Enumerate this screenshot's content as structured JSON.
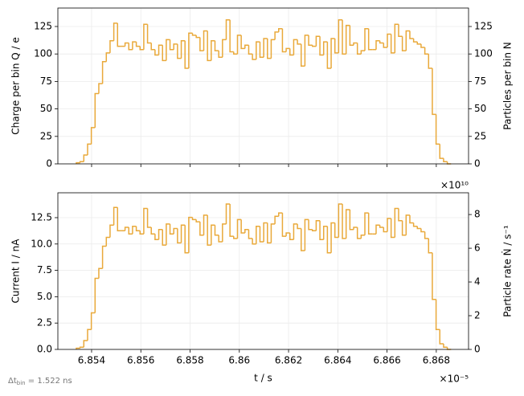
{
  "chart_data": [
    {
      "type": "histogram",
      "ylabel": "Charge per bin   Q / e",
      "y2label": "Particles per bin   N",
      "color": "#e9a93a",
      "grid": true,
      "show_xticklabels": false,
      "xlim": [
        6.85263,
        6.86931
      ],
      "xticks": [
        6.854,
        6.856,
        6.858,
        6.86,
        6.862,
        6.864,
        6.866,
        6.868
      ],
      "ylim": [
        0,
        141.8
      ],
      "yticks": [
        0,
        25,
        50,
        75,
        100,
        125
      ],
      "y2lim": [
        0,
        141.8
      ],
      "y2ticks": [
        0,
        25,
        50,
        75,
        100,
        125
      ],
      "bins": [
        6.85338,
        6.853532,
        6.853684,
        6.853837,
        6.853989,
        6.854141,
        6.854293,
        6.854445,
        6.854598,
        6.85475,
        6.854902,
        6.855054,
        6.855206,
        6.855359,
        6.855511,
        6.855663,
        6.855815,
        6.855967,
        6.85612,
        6.856272,
        6.856424,
        6.856576,
        6.856728,
        6.856881,
        6.857033,
        6.857185,
        6.857337,
        6.857489,
        6.857642,
        6.857794,
        6.857946,
        6.858098,
        6.85825,
        6.858403,
        6.858555,
        6.858707,
        6.858859,
        6.859011,
        6.859164,
        6.859316,
        6.859468,
        6.85962,
        6.859772,
        6.859925,
        6.860077,
        6.860229,
        6.860381,
        6.860533,
        6.860686,
        6.860838,
        6.86099,
        6.861142,
        6.861294,
        6.861447,
        6.861599,
        6.861751,
        6.861903,
        6.862055,
        6.862208,
        6.86236,
        6.862512,
        6.862664,
        6.862816,
        6.862969,
        6.863121,
        6.863273,
        6.863425,
        6.863577,
        6.86373,
        6.863882,
        6.864034,
        6.864186,
        6.864338,
        6.864491,
        6.864643,
        6.864795,
        6.864947,
        6.865099,
        6.865252,
        6.865404,
        6.865556,
        6.865708,
        6.86586,
        6.866013,
        6.866165,
        6.866317,
        6.866469,
        6.866621,
        6.866774,
        6.866926,
        6.867078,
        6.86723,
        6.867382,
        6.867535,
        6.867687,
        6.867839,
        6.867991,
        6.868143,
        6.868296,
        6.868448,
        6.8686
      ],
      "values": [
        1,
        2,
        8,
        18,
        33,
        64,
        73,
        93,
        101,
        112,
        128,
        107,
        107,
        110,
        104,
        111,
        107,
        104,
        127,
        110,
        104,
        99,
        108,
        94,
        113,
        104,
        109,
        96,
        112,
        87,
        119,
        117,
        115,
        103,
        121,
        94,
        112,
        103,
        97,
        113,
        131,
        102,
        100,
        117,
        105,
        108,
        100,
        95,
        111,
        97,
        114,
        96,
        113,
        120,
        123,
        102,
        105,
        99,
        113,
        109,
        89,
        117,
        108,
        107,
        116,
        99,
        111,
        87,
        114,
        101,
        131,
        100,
        126,
        108,
        110,
        100,
        103,
        123,
        104,
        104,
        112,
        110,
        106,
        118,
        101,
        127,
        116,
        103,
        121,
        114,
        111,
        109,
        106,
        100,
        87,
        45,
        18,
        5,
        2,
        0
      ]
    },
    {
      "type": "histogram",
      "ylabel": "Current   I / nA",
      "y2label": "Particle rate   Ṅ / s⁻¹",
      "xlabel": "t / s",
      "color": "#e9a93a",
      "grid": true,
      "x_offset_label": "×10⁻⁵",
      "y2_offset_label": "×10¹⁰",
      "xlim": [
        6.85263,
        6.86931
      ],
      "xticks": [
        6.854,
        6.856,
        6.858,
        6.86,
        6.862,
        6.864,
        6.866,
        6.868
      ],
      "ylim": [
        0,
        14.86
      ],
      "yticks": [
        {
          "value": 0,
          "label": "0.0"
        },
        {
          "value": 2.5,
          "label": "2.5"
        },
        {
          "value": 5,
          "label": "5.0"
        },
        {
          "value": 7.5,
          "label": "7.5"
        },
        {
          "value": 10,
          "label": "10.0"
        },
        {
          "value": 12.5,
          "label": "12.5"
        }
      ],
      "y2lim": [
        0,
        9.29
      ],
      "y2ticks": [
        0,
        2,
        4,
        6,
        8
      ],
      "bins": [
        6.85338,
        6.853532,
        6.853684,
        6.853837,
        6.853989,
        6.854141,
        6.854293,
        6.854445,
        6.854598,
        6.85475,
        6.854902,
        6.855054,
        6.855206,
        6.855359,
        6.855511,
        6.855663,
        6.855815,
        6.855967,
        6.85612,
        6.856272,
        6.856424,
        6.856576,
        6.856728,
        6.856881,
        6.857033,
        6.857185,
        6.857337,
        6.857489,
        6.857642,
        6.857794,
        6.857946,
        6.858098,
        6.85825,
        6.858403,
        6.858555,
        6.858707,
        6.858859,
        6.859011,
        6.859164,
        6.859316,
        6.859468,
        6.85962,
        6.859772,
        6.859925,
        6.860077,
        6.860229,
        6.860381,
        6.860533,
        6.860686,
        6.860838,
        6.86099,
        6.861142,
        6.861294,
        6.861447,
        6.861599,
        6.861751,
        6.861903,
        6.862055,
        6.862208,
        6.86236,
        6.862512,
        6.862664,
        6.862816,
        6.862969,
        6.863121,
        6.863273,
        6.863425,
        6.863577,
        6.86373,
        6.863882,
        6.864034,
        6.864186,
        6.864338,
        6.864491,
        6.864643,
        6.864795,
        6.864947,
        6.865099,
        6.865252,
        6.865404,
        6.865556,
        6.865708,
        6.86586,
        6.866013,
        6.866165,
        6.866317,
        6.866469,
        6.866621,
        6.866774,
        6.866926,
        6.867078,
        6.86723,
        6.867382,
        6.867535,
        6.867687,
        6.867839,
        6.867991,
        6.868143,
        6.868296,
        6.868448,
        6.8686
      ],
      "values": [
        0.11,
        0.21,
        0.84,
        1.89,
        3.47,
        6.74,
        7.68,
        9.79,
        10.63,
        11.79,
        13.47,
        11.26,
        11.26,
        11.58,
        10.95,
        11.68,
        11.26,
        10.95,
        13.37,
        11.58,
        10.95,
        10.42,
        11.37,
        9.9,
        11.9,
        10.95,
        11.47,
        10.11,
        11.79,
        9.16,
        12.53,
        12.32,
        12.11,
        10.84,
        12.74,
        9.9,
        11.79,
        10.84,
        10.21,
        11.9,
        13.79,
        10.74,
        10.53,
        12.32,
        11.05,
        11.37,
        10.53,
        10,
        11.68,
        10.21,
        12,
        10.11,
        11.9,
        12.63,
        12.95,
        10.74,
        11.05,
        10.42,
        11.9,
        11.47,
        9.37,
        12.32,
        11.37,
        11.26,
        12.21,
        10.42,
        11.68,
        9.16,
        12,
        10.63,
        13.79,
        10.53,
        13.26,
        11.37,
        11.58,
        10.53,
        10.84,
        12.95,
        10.95,
        10.95,
        11.79,
        11.58,
        11.16,
        12.42,
        10.63,
        13.37,
        12.21,
        10.84,
        12.74,
        12,
        11.68,
        11.47,
        11.16,
        10.53,
        9.16,
        4.74,
        1.89,
        0.53,
        0.21,
        0
      ]
    }
  ],
  "footnote": {
    "symbol": "Δt",
    "subscript": "bin",
    "text": " = 1.522 ns"
  }
}
